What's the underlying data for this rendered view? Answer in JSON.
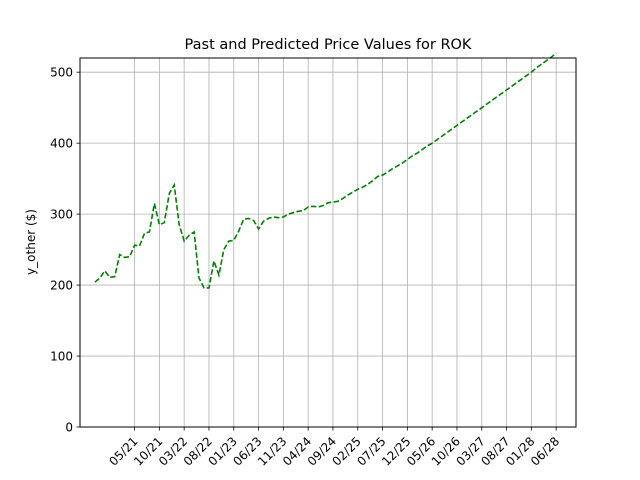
{
  "chart_data": {
    "type": "line",
    "title": "Past and Predicted Price Values for ROK",
    "xlabel": "",
    "ylabel": "y_other ($)",
    "grid": true,
    "ylim": [
      0,
      520
    ],
    "yticks": [
      0,
      100,
      200,
      300,
      400,
      500
    ],
    "x_tick_labels": [
      "05/21",
      "10/21",
      "03/22",
      "08/22",
      "01/23",
      "06/23",
      "11/23",
      "04/24",
      "09/24",
      "02/25",
      "07/25",
      "12/25",
      "05/26",
      "10/26",
      "03/27",
      "08/27",
      "01/28",
      "06/28"
    ],
    "x_tick_dates": [
      "2021-05",
      "2021-10",
      "2022-03",
      "2022-08",
      "2023-01",
      "2023-06",
      "2023-11",
      "2024-04",
      "2024-09",
      "2025-02",
      "2025-07",
      "2025-12",
      "2026-05",
      "2026-10",
      "2027-03",
      "2027-08",
      "2028-01",
      "2028-06"
    ],
    "xlim": [
      "2020-06",
      "2028-10"
    ],
    "series": [
      {
        "color": "#008000",
        "style": "dashed",
        "x": [
          "2020-09",
          "2020-10",
          "2020-11",
          "2020-12",
          "2021-01",
          "2021-02",
          "2021-03",
          "2021-04",
          "2021-05",
          "2021-06",
          "2021-07",
          "2021-08",
          "2021-09",
          "2021-10",
          "2021-11",
          "2021-12",
          "2022-01",
          "2022-02",
          "2022-03",
          "2022-04",
          "2022-05",
          "2022-06",
          "2022-07",
          "2022-08",
          "2022-09",
          "2022-10",
          "2022-11",
          "2022-12",
          "2023-01",
          "2023-02",
          "2023-03",
          "2023-04",
          "2023-05",
          "2023-06",
          "2023-07",
          "2023-08",
          "2023-09",
          "2023-10",
          "2023-11",
          "2023-12",
          "2024-01",
          "2024-02",
          "2024-03",
          "2024-04",
          "2024-05",
          "2024-06",
          "2024-07",
          "2024-08",
          "2024-09",
          "2024-10",
          "2024-11",
          "2024-12",
          "2025-01",
          "2025-02",
          "2025-03",
          "2025-04",
          "2025-05",
          "2025-06",
          "2025-07",
          "2025-08",
          "2025-09",
          "2025-10",
          "2025-11",
          "2025-12",
          "2026-01",
          "2026-02",
          "2026-03",
          "2026-04",
          "2026-05",
          "2026-06",
          "2026-07",
          "2026-08",
          "2026-09",
          "2026-10",
          "2026-11",
          "2026-12",
          "2027-01",
          "2027-02",
          "2027-03",
          "2027-04",
          "2027-05",
          "2027-06",
          "2027-07",
          "2027-08",
          "2027-09",
          "2027-10",
          "2027-11",
          "2027-12",
          "2028-01",
          "2028-02",
          "2028-03",
          "2028-04",
          "2028-05",
          "2028-06"
        ],
        "y": [
          204,
          210,
          220,
          211,
          212,
          243,
          239,
          240,
          256,
          255,
          273,
          275,
          315,
          285,
          288,
          329,
          341,
          285,
          262,
          270,
          275,
          210,
          196,
          196,
          234,
          214,
          250,
          262,
          263,
          276,
          293,
          294,
          291,
          279,
          290,
          294,
          296,
          295,
          296,
          300,
          302,
          304,
          305,
          310,
          311,
          310,
          312,
          316,
          317,
          318,
          322,
          327,
          331,
          335,
          338,
          342,
          347,
          353,
          355,
          359,
          364,
          368,
          372,
          377,
          382,
          386,
          391,
          396,
          400,
          405,
          410,
          415,
          420,
          425,
          430,
          435,
          440,
          445,
          450,
          455,
          460,
          465,
          470,
          475,
          480,
          485,
          490,
          495,
          500,
          506,
          511,
          516,
          521,
          527
        ]
      }
    ]
  }
}
